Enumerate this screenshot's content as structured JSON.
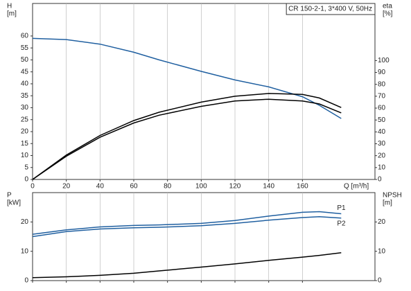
{
  "chart_data": [
    {
      "type": "line",
      "title": "CR 150-2-1, 3*400 V, 50Hz",
      "ylabel": "H",
      "ylabel_unit": "[m]",
      "y2label": "eta",
      "y2label_unit": "[%]",
      "xlabel": "Q [m³/h]",
      "x": [
        0,
        20,
        40,
        60,
        75,
        100,
        120,
        140,
        160,
        170,
        183
      ],
      "xlim": [
        0,
        203
      ],
      "xticks": [
        0,
        20,
        40,
        60,
        80,
        100,
        120,
        140,
        160
      ],
      "ylim": [
        0,
        73.6
      ],
      "yticks": [
        0,
        5,
        10,
        15,
        20,
        25,
        30,
        35,
        40,
        45,
        50,
        55,
        60
      ],
      "y2lim": [
        0,
        148
      ],
      "y2ticks": [
        0,
        10,
        20,
        30,
        40,
        50,
        60,
        70,
        80,
        90,
        100
      ],
      "grid": true,
      "series": [
        {
          "color": "#1f5fa0",
          "axis": "y",
          "values": [
            59,
            58.5,
            56.6,
            53.2,
            50,
            45.2,
            41.6,
            38.7,
            34.6,
            31,
            25.5
          ]
        },
        {
          "color": "#000000",
          "axis": "y2",
          "values": [
            0,
            20.5,
            37,
            49.5,
            56.5,
            65,
            70,
            72.3,
            71.5,
            68.5,
            60.5
          ]
        },
        {
          "color": "#000000",
          "axis": "y2",
          "values": [
            0,
            19.5,
            35.5,
            47.5,
            54,
            61.5,
            66,
            67.5,
            66,
            63.5,
            56
          ]
        }
      ]
    },
    {
      "type": "line",
      "ylabel": "P",
      "ylabel_unit": "[kW]",
      "y2label": "NPSH",
      "y2label_unit": "[m]",
      "x": [
        0,
        20,
        40,
        60,
        75,
        100,
        120,
        140,
        160,
        170,
        183
      ],
      "xlim": [
        0,
        203
      ],
      "xticks": [
        0,
        20,
        40,
        60,
        80,
        100,
        120,
        140,
        160
      ],
      "ylim": [
        0,
        30
      ],
      "yticks": [
        0,
        10,
        20
      ],
      "y2lim": [
        0,
        30
      ],
      "y2ticks": [
        0,
        10,
        20
      ],
      "grid": true,
      "series": [
        {
          "name": "P1",
          "color": "#1f5fa0",
          "axis": "y",
          "values": [
            15.8,
            17.3,
            18.3,
            18.8,
            19,
            19.5,
            20.5,
            22,
            23.3,
            23.5,
            22.8
          ]
        },
        {
          "name": "P2",
          "color": "#1f5fa0",
          "axis": "y",
          "values": [
            15,
            16.7,
            17.6,
            18,
            18.2,
            18.7,
            19.5,
            20.6,
            21.5,
            21.8,
            21.3
          ]
        },
        {
          "color": "#000000",
          "axis": "y2",
          "values": [
            1,
            1.3,
            1.8,
            2.5,
            3.3,
            4.6,
            5.7,
            6.9,
            8,
            8.6,
            9.5
          ]
        }
      ]
    }
  ]
}
